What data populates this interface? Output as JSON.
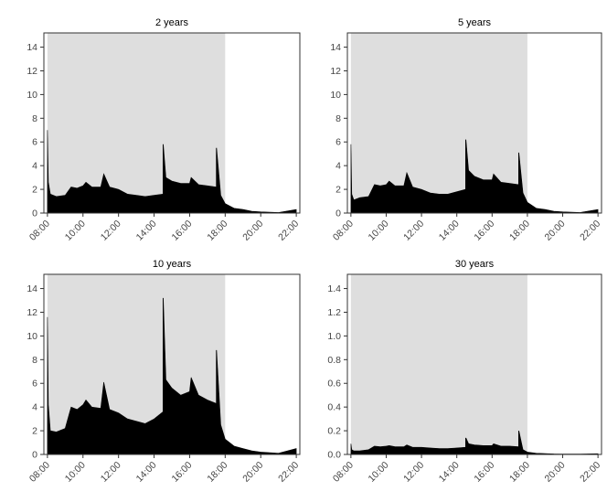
{
  "chart_data": [
    {
      "type": "area",
      "title": "2 years",
      "shaded_interval": [
        "08:00",
        "18:00"
      ],
      "x_ticks": [
        "08:00",
        "10:00",
        "12:00",
        "14:00",
        "16:00",
        "18:00",
        "20:00",
        "22:00"
      ],
      "y_ticks": [
        0,
        2,
        4,
        6,
        8,
        10,
        12,
        14
      ],
      "ylim": [
        0,
        15.2
      ],
      "grid": false,
      "series": [
        {
          "x": [
            "08:00",
            "08:03",
            "08:10",
            "08:30",
            "09:00",
            "09:20",
            "09:40",
            "10:00",
            "10:10",
            "10:30",
            "11:00",
            "11:10",
            "11:30",
            "12:00",
            "12:30",
            "13:00",
            "13:30",
            "14:00",
            "14:30",
            "14:31",
            "14:40",
            "15:00",
            "15:30",
            "16:00",
            "16:05",
            "16:30",
            "17:00",
            "17:30",
            "17:31",
            "17:45",
            "18:00",
            "18:30",
            "19:00",
            "19:30",
            "20:00",
            "21:00",
            "22:00"
          ],
          "y": [
            7.0,
            2.6,
            1.6,
            1.4,
            1.5,
            2.2,
            2.1,
            2.3,
            2.6,
            2.2,
            2.2,
            3.3,
            2.2,
            2.0,
            1.6,
            1.5,
            1.4,
            1.5,
            1.6,
            5.8,
            3.0,
            2.7,
            2.5,
            2.5,
            3.0,
            2.4,
            2.3,
            2.2,
            5.5,
            1.5,
            0.8,
            0.4,
            0.3,
            0.15,
            0.1,
            0.05,
            0.3
          ]
        }
      ]
    },
    {
      "type": "area",
      "title": "5 years",
      "shaded_interval": [
        "08:00",
        "18:00"
      ],
      "x_ticks": [
        "08:00",
        "10:00",
        "12:00",
        "14:00",
        "16:00",
        "18:00",
        "20:00",
        "22:00"
      ],
      "y_ticks": [
        0,
        2,
        4,
        6,
        8,
        10,
        12,
        14
      ],
      "ylim": [
        0,
        15.2
      ],
      "grid": false,
      "series": [
        {
          "x": [
            "08:00",
            "08:03",
            "08:10",
            "08:30",
            "09:00",
            "09:20",
            "09:40",
            "10:00",
            "10:10",
            "10:30",
            "11:00",
            "11:10",
            "11:30",
            "12:00",
            "12:30",
            "13:00",
            "13:30",
            "14:00",
            "14:30",
            "14:31",
            "14:40",
            "15:00",
            "15:30",
            "16:00",
            "16:05",
            "16:30",
            "17:00",
            "17:30",
            "17:31",
            "17:45",
            "18:00",
            "18:30",
            "19:00",
            "19:30",
            "20:00",
            "21:00",
            "22:00"
          ],
          "y": [
            5.8,
            1.6,
            1.1,
            1.3,
            1.4,
            2.4,
            2.3,
            2.4,
            2.7,
            2.3,
            2.3,
            3.4,
            2.2,
            2.0,
            1.7,
            1.6,
            1.6,
            1.8,
            2.0,
            6.2,
            3.6,
            3.1,
            2.8,
            2.8,
            3.3,
            2.6,
            2.5,
            2.4,
            5.1,
            1.7,
            0.9,
            0.4,
            0.3,
            0.15,
            0.1,
            0.05,
            0.3
          ]
        }
      ]
    },
    {
      "type": "area",
      "title": "10 years",
      "shaded_interval": [
        "08:00",
        "18:00"
      ],
      "x_ticks": [
        "08:00",
        "10:00",
        "12:00",
        "14:00",
        "16:00",
        "18:00",
        "20:00",
        "22:00"
      ],
      "y_ticks": [
        0,
        2,
        4,
        6,
        8,
        10,
        12,
        14
      ],
      "ylim": [
        0,
        15.2
      ],
      "grid": false,
      "series": [
        {
          "x": [
            "08:00",
            "08:03",
            "08:10",
            "08:30",
            "09:00",
            "09:20",
            "09:40",
            "10:00",
            "10:10",
            "10:30",
            "11:00",
            "11:10",
            "11:30",
            "12:00",
            "12:30",
            "13:00",
            "13:30",
            "14:00",
            "14:30",
            "14:31",
            "14:40",
            "15:00",
            "15:30",
            "16:00",
            "16:05",
            "16:30",
            "17:00",
            "17:30",
            "17:31",
            "17:45",
            "18:00",
            "18:30",
            "19:00",
            "19:30",
            "20:00",
            "21:00",
            "22:00"
          ],
          "y": [
            11.6,
            4.2,
            2.0,
            1.9,
            2.2,
            4.0,
            3.8,
            4.2,
            4.6,
            4.0,
            3.9,
            6.1,
            3.8,
            3.5,
            3.0,
            2.8,
            2.6,
            3.0,
            3.6,
            13.2,
            6.3,
            5.6,
            5.0,
            5.3,
            6.5,
            5.0,
            4.6,
            4.3,
            8.8,
            2.5,
            1.3,
            0.7,
            0.5,
            0.3,
            0.2,
            0.1,
            0.5
          ]
        }
      ]
    },
    {
      "type": "area",
      "title": "30 years",
      "shaded_interval": [
        "08:00",
        "18:00"
      ],
      "x_ticks": [
        "08:00",
        "10:00",
        "12:00",
        "14:00",
        "16:00",
        "18:00",
        "20:00",
        "22:00"
      ],
      "y_ticks": [
        "0.0",
        "0.2",
        "0.4",
        "0.6",
        "0.8",
        "1.0",
        "1.2",
        "1.4"
      ],
      "ylim": [
        0,
        1.52
      ],
      "grid": false,
      "series": [
        {
          "x": [
            "08:00",
            "08:03",
            "08:10",
            "08:30",
            "09:00",
            "09:20",
            "09:40",
            "10:00",
            "10:10",
            "10:30",
            "11:00",
            "11:10",
            "11:30",
            "12:00",
            "12:30",
            "13:00",
            "13:30",
            "14:00",
            "14:30",
            "14:31",
            "14:40",
            "15:00",
            "15:30",
            "16:00",
            "16:05",
            "16:30",
            "17:00",
            "17:30",
            "17:31",
            "17:45",
            "18:00",
            "18:30",
            "19:00",
            "19:30",
            "20:00",
            "21:00",
            "22:00"
          ],
          "y": [
            0.09,
            0.04,
            0.03,
            0.03,
            0.04,
            0.07,
            0.065,
            0.07,
            0.075,
            0.065,
            0.065,
            0.08,
            0.06,
            0.06,
            0.055,
            0.05,
            0.05,
            0.055,
            0.06,
            0.14,
            0.09,
            0.08,
            0.075,
            0.075,
            0.09,
            0.07,
            0.07,
            0.065,
            0.2,
            0.04,
            0.02,
            0.01,
            0.008,
            0.005,
            0.004,
            0.003,
            0.006
          ]
        }
      ]
    }
  ]
}
